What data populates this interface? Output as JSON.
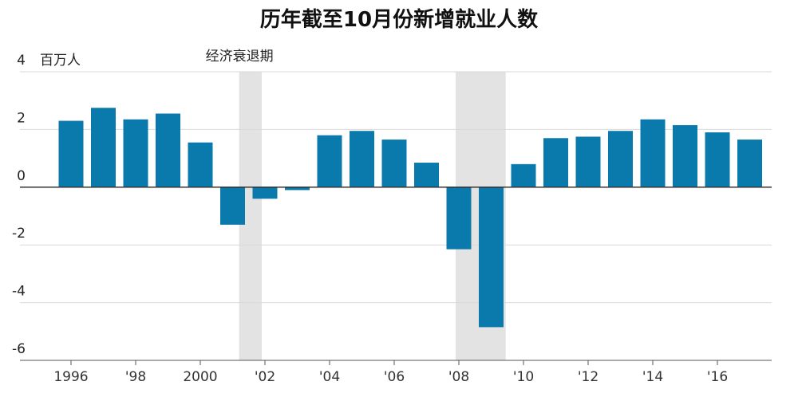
{
  "chart_data": {
    "type": "bar",
    "title": "历年截至10月份新增就业人数",
    "ylabel": "百万人",
    "ylim": [
      -6,
      4
    ],
    "y_ticks": [
      "4",
      "2",
      "0",
      "-2",
      "-4",
      "-6"
    ],
    "y_tick_values": [
      4,
      2,
      0,
      -2,
      -4,
      -6
    ],
    "categories": [
      1996,
      1997,
      1998,
      1999,
      2000,
      2001,
      2002,
      2003,
      2004,
      2005,
      2006,
      2007,
      2008,
      2009,
      2010,
      2011,
      2012,
      2013,
      2014,
      2015,
      2016,
      2017
    ],
    "x_tick_labels": [
      {
        "year": 1996,
        "label": "1996"
      },
      {
        "year": 1998,
        "label": "'98"
      },
      {
        "year": 2000,
        "label": "2000"
      },
      {
        "year": 2002,
        "label": "'02"
      },
      {
        "year": 2004,
        "label": "'04"
      },
      {
        "year": 2006,
        "label": "'06"
      },
      {
        "year": 2008,
        "label": "'08"
      },
      {
        "year": 2010,
        "label": "'10"
      },
      {
        "year": 2012,
        "label": "'12"
      },
      {
        "year": 2014,
        "label": "'14"
      },
      {
        "year": 2016,
        "label": "'16"
      }
    ],
    "series": [
      {
        "values": [
          2.3,
          2.75,
          2.35,
          2.55,
          1.55,
          -1.3,
          -0.4,
          -0.1,
          1.8,
          1.95,
          1.65,
          0.85,
          -2.15,
          -4.85,
          0.8,
          1.7,
          1.75,
          1.95,
          2.35,
          2.15,
          1.9,
          1.65
        ]
      }
    ],
    "recessions": [
      {
        "label": "经济衰退期",
        "from": 2001.2,
        "to": 2001.9
      },
      {
        "label": "",
        "from": 2007.9,
        "to": 2009.45
      }
    ],
    "grid": true,
    "bar_color": "#0a7aad",
    "recession_color": "#e3e3e3",
    "grid_color": "#d9d9d9",
    "zero_line_color": "#333333"
  }
}
